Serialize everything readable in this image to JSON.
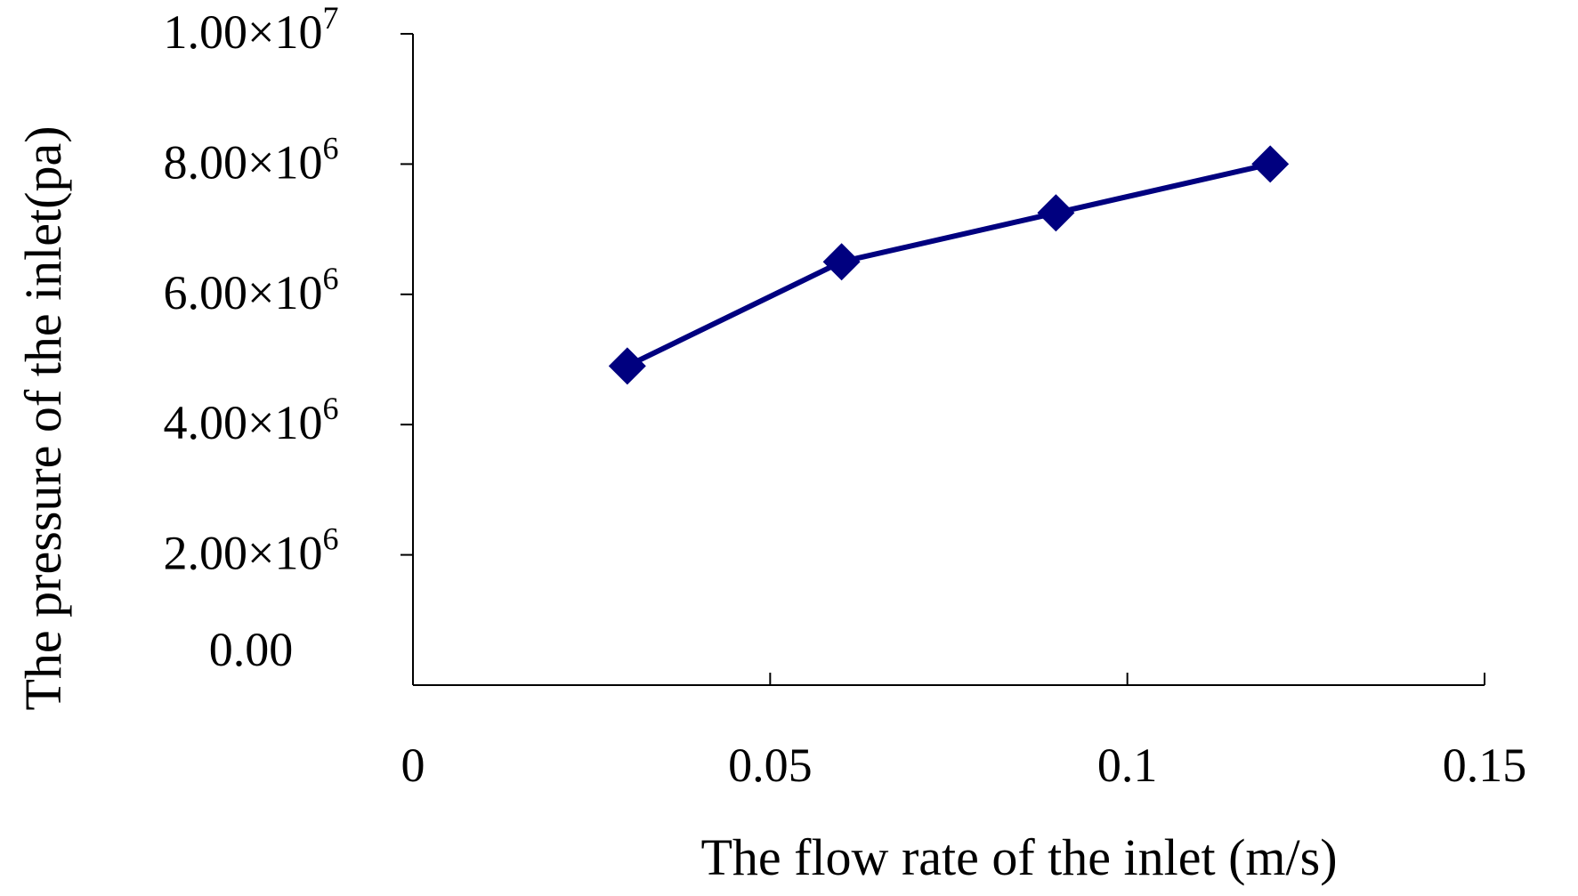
{
  "chart_data": {
    "type": "line",
    "xlabel": "The flow rate of the inlet (m/s)",
    "ylabel": "The pressure of the inlet(pa)",
    "xlim": [
      0,
      0.15
    ],
    "ylim": [
      0,
      10000000
    ],
    "x_ticks": [
      {
        "value": 0,
        "label": "0"
      },
      {
        "value": 0.05,
        "label": "0.05"
      },
      {
        "value": 0.1,
        "label": "0.1"
      },
      {
        "value": 0.15,
        "label": "0.15"
      }
    ],
    "y_ticks": [
      {
        "value": 0,
        "mantissa": "0.00",
        "exponent": ""
      },
      {
        "value": 2000000,
        "mantissa": "2.00×10",
        "exponent": "6"
      },
      {
        "value": 4000000,
        "mantissa": "4.00×10",
        "exponent": "6"
      },
      {
        "value": 6000000,
        "mantissa": "6.00×10",
        "exponent": "6"
      },
      {
        "value": 8000000,
        "mantissa": "8.00×10",
        "exponent": "6"
      },
      {
        "value": 10000000,
        "mantissa": "1.00×10",
        "exponent": "7"
      }
    ],
    "grid": false,
    "legend": "none",
    "series": [
      {
        "marker": "diamond",
        "color": "#00007f",
        "x": [
          0.03,
          0.06,
          0.09,
          0.12
        ],
        "y": [
          4900000,
          6500000,
          7250000,
          8000000
        ]
      }
    ]
  }
}
